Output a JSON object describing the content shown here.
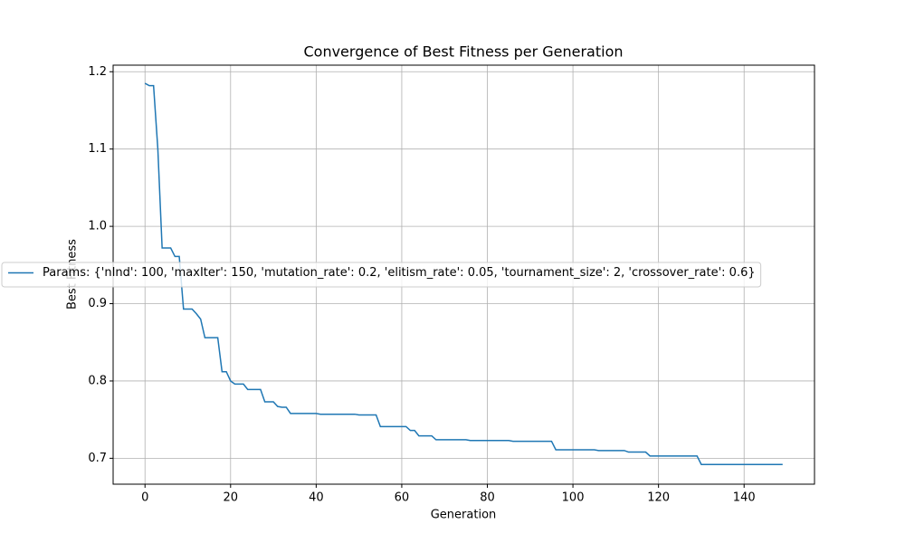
{
  "chart_data": {
    "type": "line",
    "title": "Convergence of Best Fitness per Generation",
    "x_label": "Generation",
    "y_label": "Best Fitness",
    "x": [
      0,
      1,
      2,
      3,
      4,
      5,
      6,
      7,
      8,
      9,
      10,
      11,
      12,
      13,
      14,
      15,
      16,
      17,
      18,
      19,
      20,
      21,
      22,
      23,
      24,
      25,
      26,
      27,
      28,
      29,
      30,
      31,
      32,
      33,
      34,
      35,
      36,
      37,
      38,
      39,
      40,
      41,
      42,
      43,
      44,
      45,
      46,
      47,
      48,
      49,
      50,
      51,
      52,
      53,
      54,
      55,
      56,
      57,
      58,
      59,
      60,
      61,
      62,
      63,
      64,
      65,
      66,
      67,
      68,
      69,
      70,
      71,
      72,
      73,
      74,
      75,
      76,
      77,
      78,
      79,
      80,
      81,
      82,
      83,
      84,
      85,
      86,
      87,
      88,
      89,
      90,
      91,
      92,
      93,
      94,
      95,
      96,
      97,
      98,
      99,
      100,
      101,
      102,
      103,
      104,
      105,
      106,
      107,
      108,
      109,
      110,
      111,
      112,
      113,
      114,
      115,
      116,
      117,
      118,
      119,
      120,
      121,
      122,
      123,
      124,
      125,
      126,
      127,
      128,
      129,
      130,
      131,
      132,
      133,
      134,
      135,
      136,
      137,
      138,
      139,
      140,
      141,
      142,
      143,
      144,
      145,
      146,
      147,
      148,
      149
    ],
    "series": [
      {
        "name": "Params: {'nInd': 100, 'maxIter': 150, 'mutation_rate': 0.2, 'elitism_rate': 0.05, 'tournament_size': 2, 'crossover_rate': 0.6}",
        "color": "#1f77b4",
        "values": [
          1.185,
          1.182,
          1.182,
          1.1,
          0.972,
          0.972,
          0.972,
          0.961,
          0.961,
          0.893,
          0.893,
          0.893,
          0.887,
          0.88,
          0.856,
          0.856,
          0.856,
          0.856,
          0.812,
          0.812,
          0.8,
          0.796,
          0.796,
          0.796,
          0.789,
          0.789,
          0.789,
          0.789,
          0.773,
          0.773,
          0.773,
          0.767,
          0.766,
          0.766,
          0.758,
          0.758,
          0.758,
          0.758,
          0.758,
          0.758,
          0.758,
          0.757,
          0.757,
          0.757,
          0.757,
          0.757,
          0.757,
          0.757,
          0.757,
          0.757,
          0.756,
          0.756,
          0.756,
          0.756,
          0.756,
          0.741,
          0.741,
          0.741,
          0.741,
          0.741,
          0.741,
          0.741,
          0.736,
          0.736,
          0.729,
          0.729,
          0.729,
          0.729,
          0.724,
          0.724,
          0.724,
          0.724,
          0.724,
          0.724,
          0.724,
          0.724,
          0.723,
          0.723,
          0.723,
          0.723,
          0.723,
          0.723,
          0.723,
          0.723,
          0.723,
          0.723,
          0.722,
          0.722,
          0.722,
          0.722,
          0.722,
          0.722,
          0.722,
          0.722,
          0.722,
          0.722,
          0.711,
          0.711,
          0.711,
          0.711,
          0.711,
          0.711,
          0.711,
          0.711,
          0.711,
          0.711,
          0.71,
          0.71,
          0.71,
          0.71,
          0.71,
          0.71,
          0.71,
          0.708,
          0.708,
          0.708,
          0.708,
          0.708,
          0.703,
          0.703,
          0.703,
          0.703,
          0.703,
          0.703,
          0.703,
          0.703,
          0.703,
          0.703,
          0.703,
          0.703,
          0.692,
          0.692,
          0.692,
          0.692,
          0.692,
          0.692,
          0.692,
          0.692,
          0.692,
          0.692,
          0.692,
          0.692,
          0.692,
          0.692,
          0.692,
          0.692,
          0.692,
          0.692,
          0.692,
          0.692
        ]
      }
    ],
    "xlim": [
      -7.45,
      156.45
    ],
    "ylim": [
      0.6665,
      1.2085
    ],
    "xticks": [
      0,
      20,
      40,
      60,
      80,
      100,
      120,
      140
    ],
    "yticks": [
      0.7,
      0.8,
      0.9,
      {
        "value": 1,
        "label": "1.0"
      },
      1.1,
      1.2
    ],
    "grid": true,
    "legend_loc": "center left"
  }
}
